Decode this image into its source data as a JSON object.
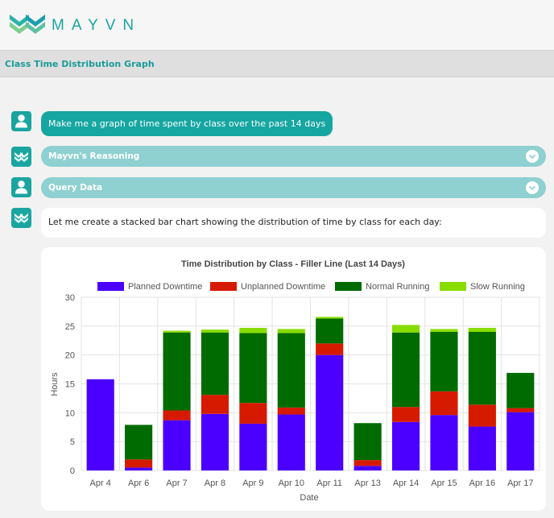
{
  "header": {
    "brand": "MAYVN",
    "logo_icon": "mayvn-logo-icon"
  },
  "page": {
    "title": "Class Time Distribution Graph"
  },
  "messages": {
    "user_prompt": "Make me a graph of time spent by class over the past 14 days",
    "reasoning_label": "Mayvn's Reasoning",
    "query_label": "Query Data",
    "assistant_reply": "Let me create a stacked bar chart showing the distribution of time by class for each day:"
  },
  "colors": {
    "accent": "#16a6a1",
    "accordion": "#8fd0d0"
  },
  "chart_data": {
    "type": "bar",
    "stacked": true,
    "title": "Time Distribution by Class - Filler Line (Last 14 Days)",
    "xlabel": "Date",
    "ylabel": "Hours",
    "ylim": [
      0,
      30
    ],
    "yticks": [
      0,
      5,
      10,
      15,
      20,
      25,
      30
    ],
    "grid": true,
    "legend_position": "top",
    "categories": [
      "Apr 4",
      "Apr 6",
      "Apr 7",
      "Apr 8",
      "Apr 9",
      "Apr 10",
      "Apr 11",
      "Apr 13",
      "Apr 14",
      "Apr 15",
      "Apr 16",
      "Apr 17"
    ],
    "series": [
      {
        "name": "Planned Downtime",
        "color": "#4b00ff",
        "values": [
          15.8,
          0.5,
          8.7,
          9.8,
          8.1,
          9.7,
          20.0,
          0.8,
          8.4,
          9.6,
          7.6,
          10.1
        ]
      },
      {
        "name": "Unplanned Downtime",
        "color": "#d61a00",
        "values": [
          0,
          1.4,
          1.7,
          3.3,
          3.6,
          1.2,
          2.0,
          1.0,
          2.6,
          4.1,
          3.8,
          0.7
        ]
      },
      {
        "name": "Normal Running",
        "color": "#006b00",
        "values": [
          0,
          6.0,
          13.5,
          10.8,
          12.1,
          12.9,
          4.3,
          6.4,
          12.9,
          10.3,
          12.6,
          6.1
        ]
      },
      {
        "name": "Slow Running",
        "color": "#88dd00",
        "values": [
          0,
          0,
          0.3,
          0.5,
          0.9,
          0.7,
          0.3,
          0,
          1.3,
          0.5,
          0.7,
          0
        ]
      }
    ]
  }
}
